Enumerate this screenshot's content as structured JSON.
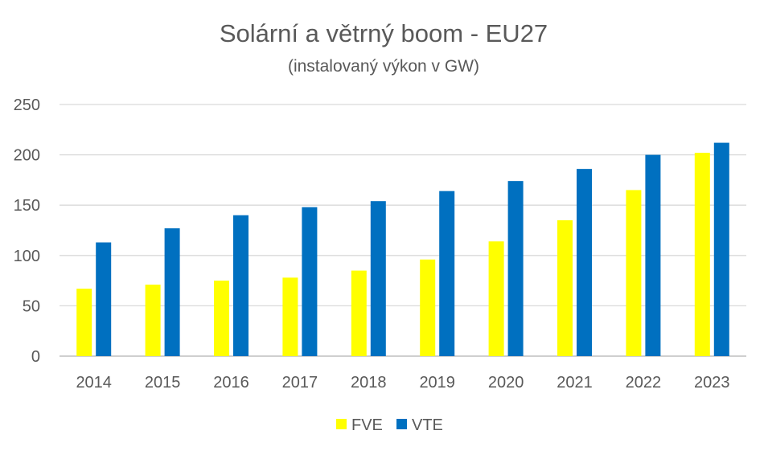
{
  "chart_data": {
    "type": "bar",
    "title": "Solární a větrný boom - EU27",
    "subtitle": "(instalovaný výkon v GW)",
    "categories": [
      "2014",
      "2015",
      "2016",
      "2017",
      "2018",
      "2019",
      "2020",
      "2021",
      "2022",
      "2023"
    ],
    "series": [
      {
        "name": "FVE",
        "color": "#FFFF00",
        "values": [
          67,
          71,
          75,
          78,
          85,
          96,
          114,
          135,
          165,
          202
        ]
      },
      {
        "name": "VTE",
        "color": "#0070C0",
        "values": [
          113,
          127,
          140,
          148,
          154,
          164,
          174,
          186,
          200,
          212
        ]
      }
    ],
    "yticks": [
      "0",
      "50",
      "100",
      "150",
      "200",
      "250"
    ],
    "ylim": [
      0,
      250
    ],
    "grid": true,
    "legend": "bottom"
  }
}
